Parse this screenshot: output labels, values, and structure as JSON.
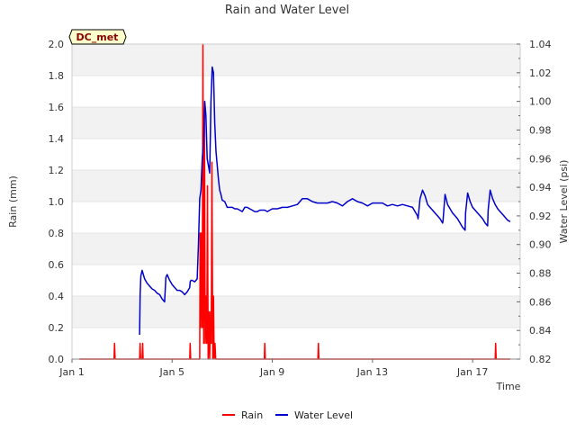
{
  "chart_data": {
    "type": "line",
    "title": "Rain and Water Level",
    "xlabel": "Time",
    "ylabel": "Rain (mm)",
    "y2label": "Water Level (psi)",
    "site_label": "DC_met",
    "xlim": [
      0,
      17.9
    ],
    "ylim": [
      0,
      2.0
    ],
    "y2lim": [
      0.82,
      1.04
    ],
    "x_ticks": [
      {
        "value": 0,
        "label": "Jan 1"
      },
      {
        "value": 4,
        "label": "Jan 5"
      },
      {
        "value": 8,
        "label": "Jan 9"
      },
      {
        "value": 12,
        "label": "Jan 13"
      },
      {
        "value": 16,
        "label": "Jan 17"
      }
    ],
    "y_ticks": [
      {
        "value": 0.0,
        "label": "0.0"
      },
      {
        "value": 0.2,
        "label": "0.2"
      },
      {
        "value": 0.4,
        "label": "0.4"
      },
      {
        "value": 0.6,
        "label": "0.6"
      },
      {
        "value": 0.8,
        "label": "0.8"
      },
      {
        "value": 1.0,
        "label": "1.0"
      },
      {
        "value": 1.2,
        "label": "1.2"
      },
      {
        "value": 1.4,
        "label": "1.4"
      },
      {
        "value": 1.6,
        "label": "1.6"
      },
      {
        "value": 1.8,
        "label": "1.8"
      },
      {
        "value": 2.0,
        "label": "2.0"
      }
    ],
    "y2_ticks": [
      {
        "value": 0.82,
        "label": "0.82"
      },
      {
        "value": 0.84,
        "label": "0.84"
      },
      {
        "value": 0.86,
        "label": "0.86"
      },
      {
        "value": 0.88,
        "label": "0.88"
      },
      {
        "value": 0.9,
        "label": "0.90"
      },
      {
        "value": 0.92,
        "label": "0.92"
      },
      {
        "value": 0.94,
        "label": "0.94"
      },
      {
        "value": 0.96,
        "label": "0.96"
      },
      {
        "value": 0.98,
        "label": "0.98"
      },
      {
        "value": 1.0,
        "label": "1.00"
      },
      {
        "value": 1.02,
        "label": "1.02"
      },
      {
        "value": 1.04,
        "label": "1.04"
      }
    ],
    "series": [
      {
        "name": "Rain",
        "color": "#ff0000",
        "axis": "left",
        "x": [
          0.3,
          1.68,
          1.7,
          1.72,
          2.7,
          2.72,
          2.74,
          2.8,
          2.82,
          2.84,
          4.7,
          4.72,
          4.74,
          5.1,
          5.12,
          5.14,
          5.16,
          5.2,
          5.23,
          5.26,
          5.29,
          5.32,
          5.35,
          5.38,
          5.41,
          5.44,
          5.47,
          5.5,
          5.53,
          5.56,
          5.59,
          5.62,
          5.65,
          5.68,
          5.71,
          5.74,
          5.77,
          5.8,
          5.83,
          5.86,
          5.89,
          5.92,
          5.95,
          5.98,
          6.01,
          6.04,
          7.68,
          7.7,
          7.72,
          9.82,
          9.84,
          9.86,
          16.9,
          16.92,
          16.94,
          17.5
        ],
        "values": [
          0,
          0,
          0.1,
          0,
          0,
          0.1,
          0,
          0,
          0.1,
          0,
          0,
          0.1,
          0,
          0,
          0.8,
          0.2,
          0.8,
          0.2,
          2.0,
          0.1,
          1.55,
          0.1,
          0.4,
          0.1,
          1.1,
          0,
          0.3,
          0,
          0.3,
          0.1,
          1.25,
          0,
          0.4,
          0,
          0.1,
          0,
          0,
          0,
          0,
          0,
          0,
          0,
          0,
          0,
          0,
          0,
          0,
          0.1,
          0,
          0,
          0.1,
          0,
          0,
          0.1,
          0,
          0
        ]
      },
      {
        "name": "Water Level",
        "color": "#0000cc",
        "axis": "right",
        "x": [
          2.7,
          2.72,
          2.75,
          2.8,
          2.85,
          2.9,
          3.0,
          3.1,
          3.2,
          3.3,
          3.4,
          3.5,
          3.6,
          3.7,
          3.75,
          3.8,
          3.85,
          3.9,
          4.0,
          4.1,
          4.2,
          4.3,
          4.4,
          4.5,
          4.6,
          4.7,
          4.72,
          4.75,
          4.8,
          4.9,
          5.0,
          5.05,
          5.1,
          5.15,
          5.2,
          5.25,
          5.3,
          5.35,
          5.4,
          5.45,
          5.5,
          5.55,
          5.6,
          5.65,
          5.7,
          5.75,
          5.8,
          5.85,
          5.9,
          5.95,
          6.0,
          6.1,
          6.2,
          6.3,
          6.4,
          6.5,
          6.6,
          6.7,
          6.8,
          6.9,
          7.0,
          7.1,
          7.2,
          7.3,
          7.4,
          7.5,
          7.6,
          7.7,
          7.8,
          7.9,
          8.0,
          8.2,
          8.4,
          8.6,
          8.8,
          9.0,
          9.2,
          9.4,
          9.6,
          9.8,
          10.0,
          10.2,
          10.4,
          10.6,
          10.8,
          11.0,
          11.2,
          11.4,
          11.6,
          11.8,
          12.0,
          12.2,
          12.4,
          12.6,
          12.8,
          13.0,
          13.2,
          13.4,
          13.6,
          13.8,
          13.82,
          13.9,
          14.0,
          14.1,
          14.2,
          14.3,
          14.4,
          14.5,
          14.6,
          14.7,
          14.8,
          14.82,
          14.9,
          15.0,
          15.1,
          15.2,
          15.3,
          15.4,
          15.5,
          15.6,
          15.7,
          15.72,
          15.8,
          15.9,
          16.0,
          16.1,
          16.2,
          16.3,
          16.4,
          16.5,
          16.6,
          16.62,
          16.7,
          16.8,
          16.9,
          17.0,
          17.1,
          17.2,
          17.3,
          17.4,
          17.5
        ],
        "values": [
          0.837,
          0.865,
          0.878,
          0.882,
          0.879,
          0.876,
          0.873,
          0.871,
          0.869,
          0.868,
          0.866,
          0.865,
          0.862,
          0.86,
          0.877,
          0.879,
          0.877,
          0.875,
          0.872,
          0.87,
          0.868,
          0.868,
          0.867,
          0.865,
          0.867,
          0.87,
          0.874,
          0.875,
          0.875,
          0.874,
          0.876,
          0.9,
          0.932,
          0.938,
          0.96,
          0.97,
          1.0,
          0.99,
          0.96,
          0.955,
          0.95,
          1.0,
          1.024,
          1.02,
          0.985,
          0.965,
          0.955,
          0.945,
          0.938,
          0.935,
          0.931,
          0.93,
          0.926,
          0.926,
          0.926,
          0.925,
          0.925,
          0.924,
          0.923,
          0.926,
          0.926,
          0.925,
          0.924,
          0.923,
          0.923,
          0.924,
          0.924,
          0.924,
          0.923,
          0.924,
          0.925,
          0.925,
          0.926,
          0.926,
          0.927,
          0.928,
          0.932,
          0.932,
          0.93,
          0.929,
          0.929,
          0.929,
          0.93,
          0.929,
          0.927,
          0.93,
          0.932,
          0.93,
          0.929,
          0.927,
          0.929,
          0.929,
          0.929,
          0.927,
          0.928,
          0.927,
          0.928,
          0.927,
          0.926,
          0.92,
          0.918,
          0.932,
          0.938,
          0.934,
          0.928,
          0.926,
          0.924,
          0.922,
          0.92,
          0.918,
          0.915,
          0.917,
          0.935,
          0.928,
          0.925,
          0.922,
          0.92,
          0.918,
          0.915,
          0.912,
          0.91,
          0.922,
          0.936,
          0.93,
          0.926,
          0.924,
          0.922,
          0.92,
          0.918,
          0.915,
          0.913,
          0.924,
          0.938,
          0.932,
          0.928,
          0.925,
          0.923,
          0.921,
          0.919,
          0.917,
          0.916
        ]
      }
    ],
    "legend": {
      "position": "bottom-center",
      "entries": [
        "Rain",
        "Water Level"
      ]
    }
  }
}
